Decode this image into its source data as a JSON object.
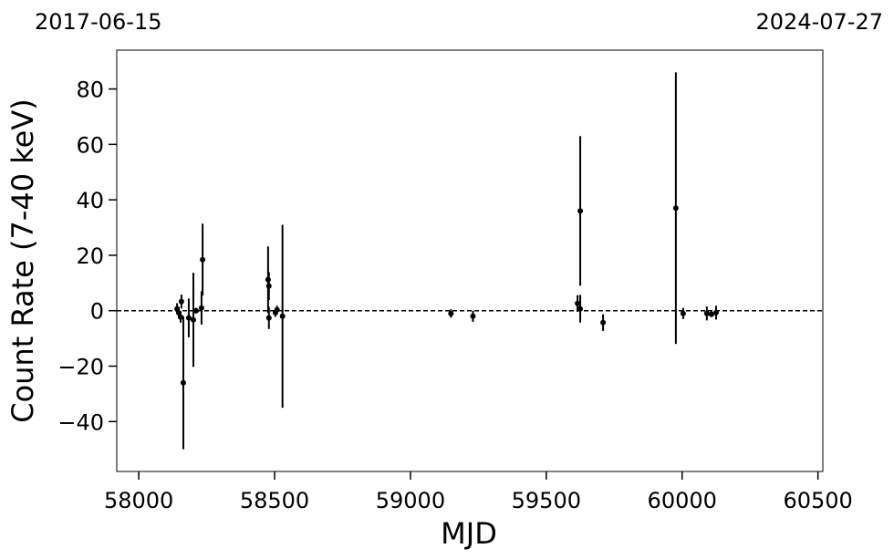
{
  "chart_data": {
    "type": "scatter",
    "xlabel": "MJD",
    "ylabel": "Count Rate (7-40 keV)",
    "annotations": [
      "2017-06-15",
      "2024-07-27"
    ],
    "x": [
      58141,
      58147,
      58154,
      58157,
      58164,
      58184,
      58201,
      58211,
      58231,
      58235,
      58476,
      58479,
      58479,
      58503,
      58509,
      58529,
      59149,
      59230,
      59615,
      59625,
      59625,
      59709,
      59977,
      60004,
      60091,
      60108,
      60125
    ],
    "values": [
      0.7,
      -0.7,
      -2.3,
      3.3,
      -26,
      -2.6,
      -3.3,
      0,
      1,
      18.4,
      11.2,
      8.9,
      -2.6,
      -0.7,
      0.3,
      -2,
      -1,
      -2,
      2.6,
      36,
      0.7,
      -4.3,
      37,
      -1,
      -1,
      -1.3,
      -0.7
    ],
    "errors": [
      2,
      2,
      2,
      2.5,
      24,
      7,
      17,
      1,
      6,
      13,
      12,
      5,
      4,
      1.5,
      1.5,
      33,
      1.5,
      2,
      3,
      27,
      5,
      3,
      49,
      2,
      2.5,
      1,
      2.5
    ],
    "color": "#000000",
    "hline": 0,
    "xlim": [
      57919,
      60518
    ],
    "ylim": [
      -58,
      94
    ],
    "xticks": [
      58000,
      58500,
      59000,
      59500,
      60000,
      60500
    ],
    "yticks": [
      {
        "value": -40,
        "label": "−40"
      },
      {
        "value": -20,
        "label": "−20"
      },
      0,
      20,
      40,
      60,
      80
    ]
  }
}
